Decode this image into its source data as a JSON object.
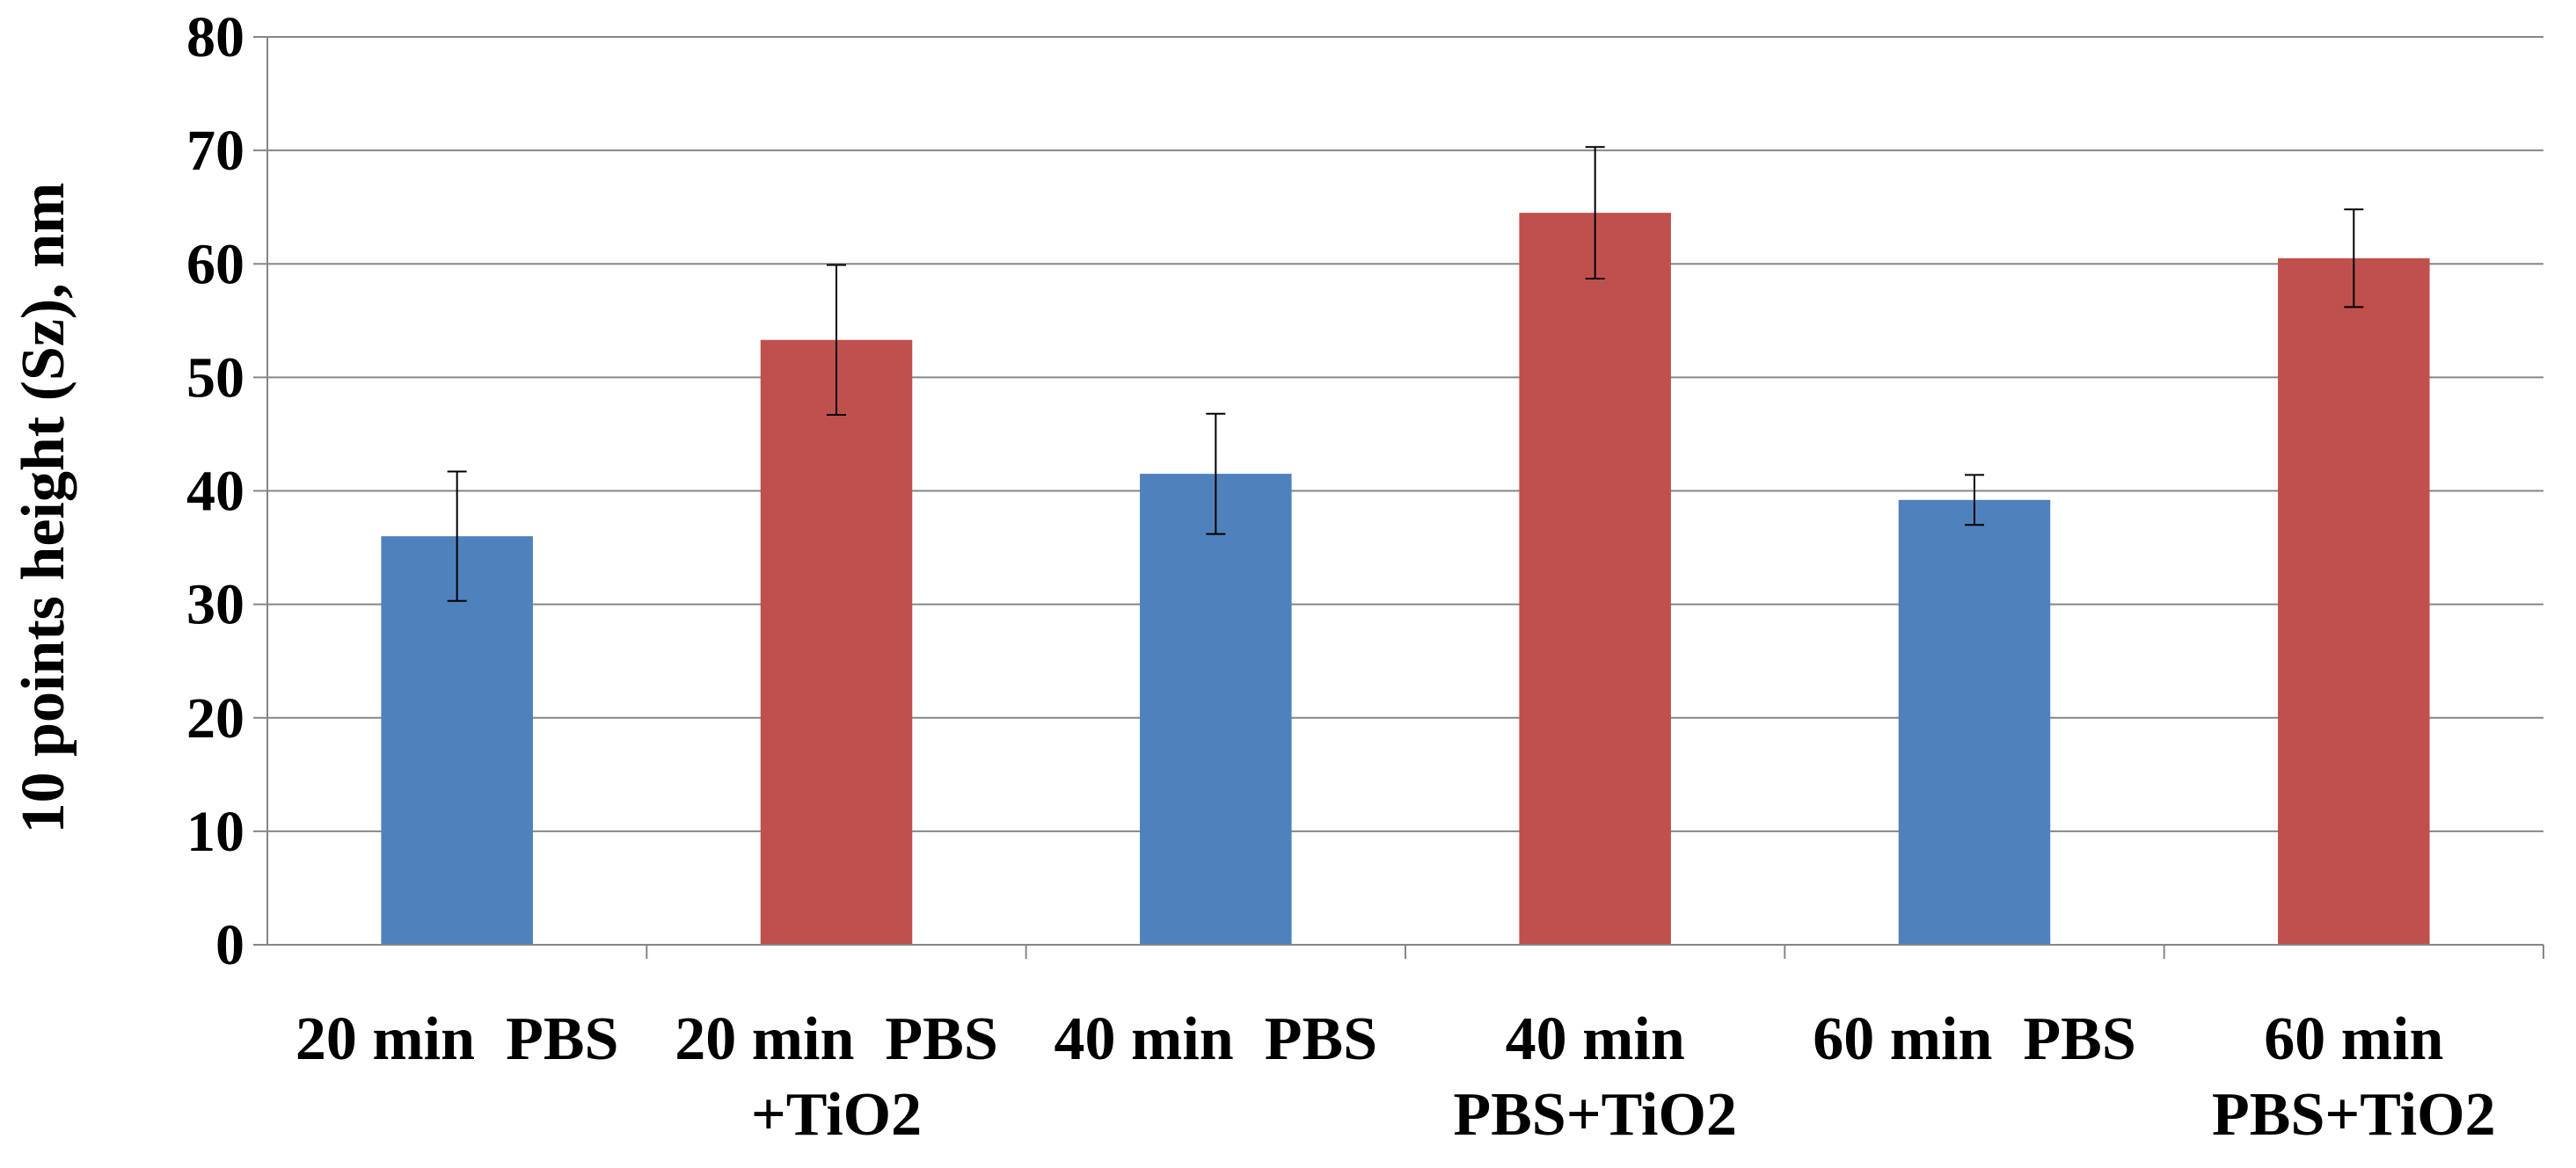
{
  "chart_data": {
    "type": "bar",
    "title": "",
    "xlabel": "",
    "ylabel": "10 points height (Sz), nm",
    "ylim": [
      0,
      80
    ],
    "ytick_step": 10,
    "yticks": [
      "0",
      "10",
      "20",
      "30",
      "40",
      "50",
      "60",
      "70",
      "80"
    ],
    "grid": true,
    "legend": "none",
    "categories": [
      {
        "lines": [
          "20 min  PBS"
        ]
      },
      {
        "lines": [
          "20 min  PBS",
          "+TiO2"
        ]
      },
      {
        "lines": [
          "40 min  PBS"
        ]
      },
      {
        "lines": [
          "40 min",
          "PBS+TiO2"
        ]
      },
      {
        "lines": [
          "60 min  PBS"
        ]
      },
      {
        "lines": [
          "60 min",
          "PBS+TiO2"
        ]
      }
    ],
    "values": [
      36,
      53.3,
      41.5,
      64.5,
      39.2,
      60.5
    ],
    "errors": [
      5.7,
      6.6,
      5.3,
      5.8,
      2.2,
      4.3
    ],
    "colors": [
      "#4f81bd",
      "#c0504d",
      "#4f81bd",
      "#c0504d",
      "#4f81bd",
      "#c0504d"
    ],
    "gridline_color": "#868686",
    "axis_color": "#868686",
    "errorbar_color": "#000000"
  }
}
